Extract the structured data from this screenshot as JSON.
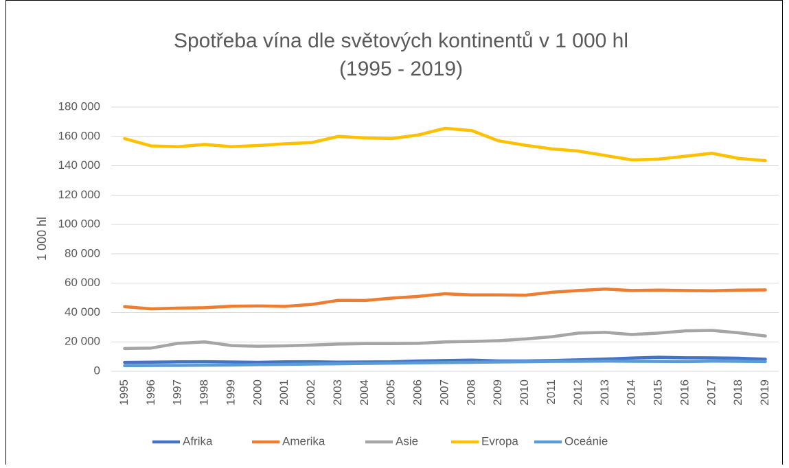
{
  "chart_data": {
    "type": "line",
    "title": "Spotřeba vína dle světových kontinentů v 1 000 hl",
    "subtitle": "(1995 - 2019)",
    "y_label": "1 000  hl",
    "categories": [
      "1995",
      "1996",
      "1997",
      "1998",
      "1999",
      "2000",
      "2001",
      "2002",
      "2003",
      "2004",
      "2005",
      "2006",
      "2007",
      "2008",
      "2009",
      "2010",
      "2011",
      "2012",
      "2013",
      "2014",
      "2015",
      "2016",
      "2017",
      "2018",
      "2019"
    ],
    "series": [
      {
        "name": "Afrika",
        "color": "#4472c4",
        "values": [
          6000,
          6200,
          6400,
          6500,
          6300,
          6100,
          6400,
          6500,
          6200,
          6300,
          6400,
          7000,
          7300,
          7600,
          7000,
          7000,
          7300,
          7800,
          8300,
          9000,
          9500,
          9200,
          9100,
          8900,
          8200
        ]
      },
      {
        "name": "Amerika",
        "color": "#ed7d31",
        "values": [
          44000,
          42500,
          43000,
          43300,
          44300,
          44500,
          44200,
          45500,
          48300,
          48200,
          49800,
          51000,
          52800,
          52000,
          52000,
          51800,
          53800,
          55000,
          56000,
          55000,
          55300,
          55000,
          54800,
          55300,
          55400
        ]
      },
      {
        "name": "Asie",
        "color": "#a5a5a5",
        "values": [
          15500,
          15800,
          19000,
          20000,
          17500,
          17000,
          17300,
          17800,
          18500,
          18800,
          18800,
          19000,
          20000,
          20300,
          20800,
          22000,
          23500,
          26000,
          26500,
          25000,
          26000,
          27500,
          27800,
          26200,
          24000
        ]
      },
      {
        "name": "Evropa",
        "color": "#ffc000",
        "values": [
          158500,
          153500,
          153000,
          154500,
          153000,
          153800,
          155000,
          155800,
          160000,
          159000,
          158500,
          161000,
          165500,
          164000,
          157000,
          154000,
          151500,
          150000,
          147000,
          144000,
          144500,
          146500,
          148500,
          145000,
          143500
        ]
      },
      {
        "name": "Oceánie",
        "color": "#5b9bd5",
        "values": [
          3800,
          3900,
          4000,
          4100,
          4200,
          4500,
          4700,
          4900,
          5100,
          5300,
          5500,
          5700,
          5900,
          6100,
          6300,
          6500,
          6700,
          6800,
          6900,
          6800,
          6700,
          6600,
          6900,
          6800,
          6600
        ]
      }
    ],
    "ylim": [
      0,
      180000
    ],
    "yticks": [
      0,
      {
        "value": 20000,
        "label": "20 000"
      },
      {
        "value": 40000,
        "label": "40 000"
      },
      {
        "value": 60000,
        "label": "60 000"
      },
      {
        "value": 80000,
        "label": "80 000"
      },
      {
        "value": 100000,
        "label": "100 000"
      },
      {
        "value": 120000,
        "label": "120 000"
      },
      {
        "value": 140000,
        "label": "140 000"
      },
      {
        "value": 160000,
        "label": "160 000"
      },
      {
        "value": 180000,
        "label": "180 000"
      }
    ],
    "grid": true,
    "legend": "bottom"
  }
}
